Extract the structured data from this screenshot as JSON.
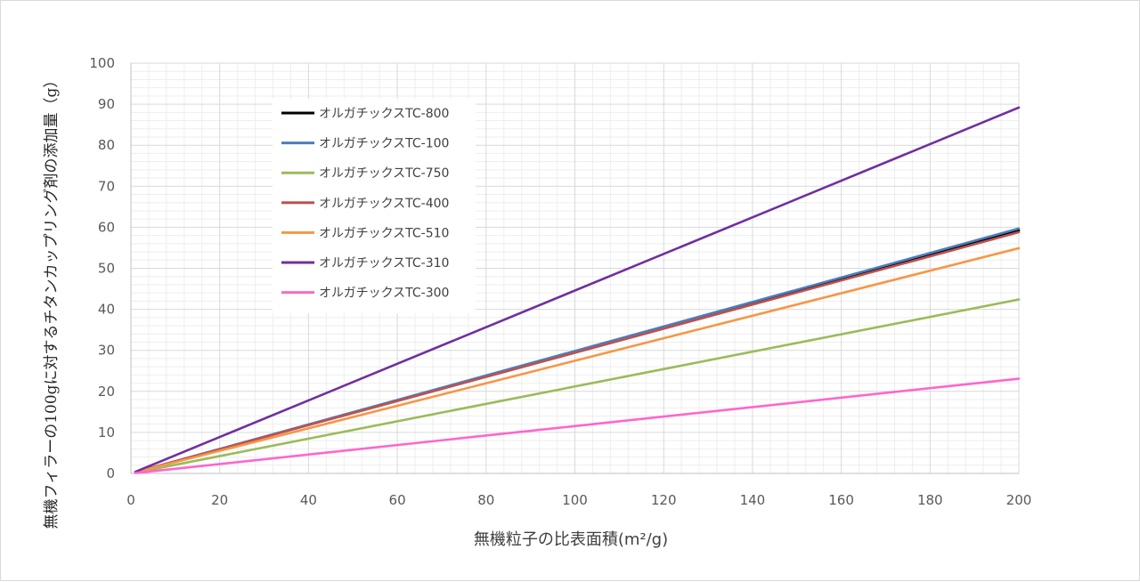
{
  "chart_data": {
    "type": "line",
    "title": "",
    "xlabel": "無機粒子の比表面積(m²/g)",
    "ylabel": "無機フィラーの100gに対するチタンカップリング剤の添加量（g）",
    "xlim": [
      0,
      200
    ],
    "ylim": [
      0,
      100
    ],
    "x_ticks": [
      "0",
      "20",
      "40",
      "60",
      "80",
      "100",
      "120",
      "140",
      "160",
      "180",
      "200"
    ],
    "y_ticks": [
      "0",
      "10",
      "20",
      "30",
      "40",
      "50",
      "60",
      "70",
      "80",
      "90",
      "100"
    ],
    "grid": true,
    "legend_position": "top-left",
    "series": [
      {
        "name": "オルガチックスTC-800",
        "color": "#000000",
        "x": [
          1,
          200
        ],
        "y": [
          0.3,
          59.2
        ]
      },
      {
        "name": "オルガチックスTC-100",
        "color": "#4a7ebb",
        "x": [
          1,
          200
        ],
        "y": [
          0.3,
          59.7
        ]
      },
      {
        "name": "オルガチックスTC-750",
        "color": "#9bbb59",
        "x": [
          1,
          200
        ],
        "y": [
          0.2,
          42.4
        ]
      },
      {
        "name": "オルガチックスTC-400",
        "color": "#c0504d",
        "x": [
          1,
          200
        ],
        "y": [
          0.3,
          58.8
        ]
      },
      {
        "name": "オルガチックスTC-510",
        "color": "#f79646",
        "x": [
          1,
          200
        ],
        "y": [
          0.3,
          54.9
        ]
      },
      {
        "name": "オルガチックスTC-310",
        "color": "#7030a0",
        "x": [
          1,
          200
        ],
        "y": [
          0.4,
          89.2
        ]
      },
      {
        "name": "オルガチックスTC-300",
        "color": "#ff66cc",
        "x": [
          1,
          200
        ],
        "y": [
          0.1,
          23.1
        ]
      }
    ]
  }
}
